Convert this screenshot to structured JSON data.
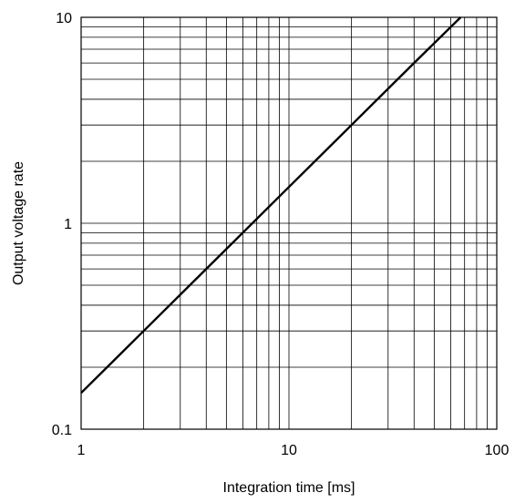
{
  "chart_data": {
    "type": "line",
    "title": "",
    "xlabel": "Integration time [ms]",
    "ylabel": "Output voltage rate",
    "x_scale": "log",
    "y_scale": "log",
    "xlim": [
      1,
      100
    ],
    "ylim": [
      0.1,
      10
    ],
    "grid": true,
    "x_ticks": [
      {
        "value": 1,
        "label": "1"
      },
      {
        "value": 10,
        "label": "10"
      },
      {
        "value": 100,
        "label": "100"
      }
    ],
    "y_ticks": [
      {
        "value": 0.1,
        "label": "0.1"
      },
      {
        "value": 1,
        "label": "1"
      },
      {
        "value": 10,
        "label": "10"
      }
    ],
    "series": [
      {
        "x": [
          1,
          2,
          4,
          6.5,
          10,
          20,
          40,
          67
        ],
        "y": [
          0.15,
          0.3,
          0.6,
          0.975,
          1.5,
          3,
          6,
          10
        ]
      }
    ]
  }
}
